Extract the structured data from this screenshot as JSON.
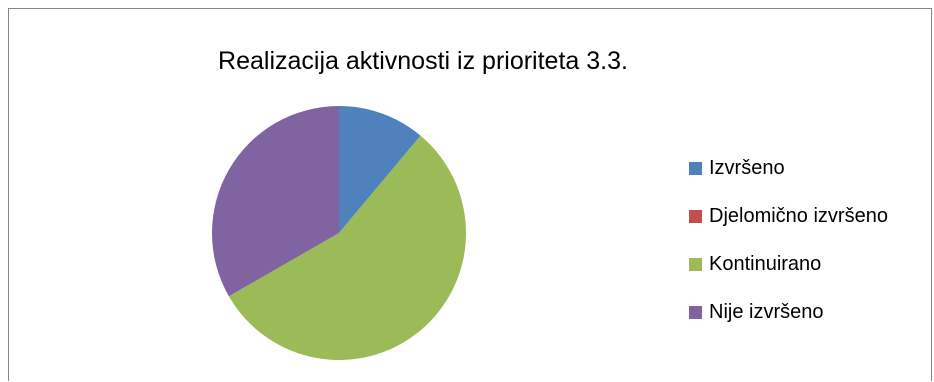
{
  "chart_data": {
    "type": "pie",
    "title": "Realizacija aktivnosti iz prioriteta 3.3.",
    "categories": [
      "Izvršeno",
      "Djelomično izvršeno",
      "Kontinuirano",
      "Nije izvršeno"
    ],
    "values": [
      11.1,
      0,
      55.6,
      33.3
    ],
    "colors": [
      "#4f81bd",
      "#c0504d",
      "#9bbb59",
      "#8064a2"
    ],
    "legend_position": "right"
  }
}
